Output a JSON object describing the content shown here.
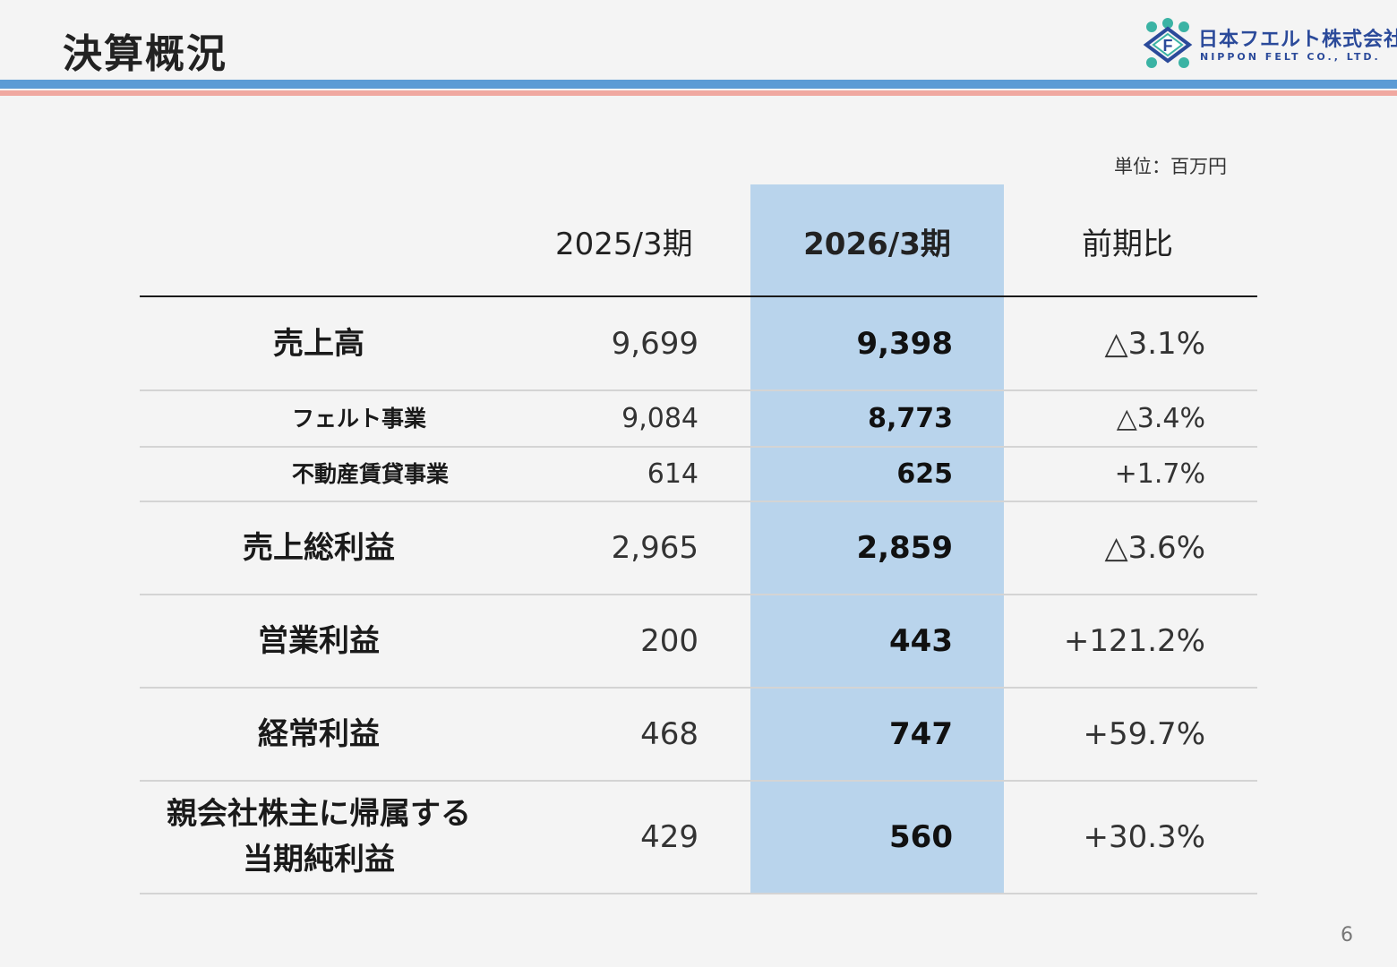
{
  "page": {
    "title": "決算概況",
    "unit": "単位：百万円",
    "page_number": "6"
  },
  "logo": {
    "name": "日本フエルト株式会社",
    "sub": "NIPPON FELT CO., LTD.",
    "mark_letter": "F",
    "icon": "nippon-felt-logo-mark"
  },
  "colors": {
    "highlight_column": "#b9d4ec",
    "band_blue": "#5b9bd5",
    "band_pink": "#f0a8a0"
  },
  "table": {
    "headers": {
      "prev": "2025/3期",
      "cur": "2026/3期",
      "cmp": "前期比"
    },
    "rows": [
      {
        "label": "売上高",
        "prev": "9,699",
        "cur": "9,398",
        "cmp": "△3.1%"
      },
      {
        "label": "フェルト事業",
        "prev": "9,084",
        "cur": "8,773",
        "cmp": "△3.4%"
      },
      {
        "label": "不動産賃貸事業",
        "prev": "614",
        "cur": "625",
        "cmp": "+1.7%"
      },
      {
        "label": "売上総利益",
        "prev": "2,965",
        "cur": "2,859",
        "cmp": "△3.6%"
      },
      {
        "label": "営業利益",
        "prev": "200",
        "cur": "443",
        "cmp": "+121.2%"
      },
      {
        "label": "経常利益",
        "prev": "468",
        "cur": "747",
        "cmp": "+59.7%"
      },
      {
        "label_line1": "親会社株主に帰属する",
        "label_line2": "当期純利益",
        "prev": "429",
        "cur": "560",
        "cmp": "+30.3%"
      }
    ]
  }
}
